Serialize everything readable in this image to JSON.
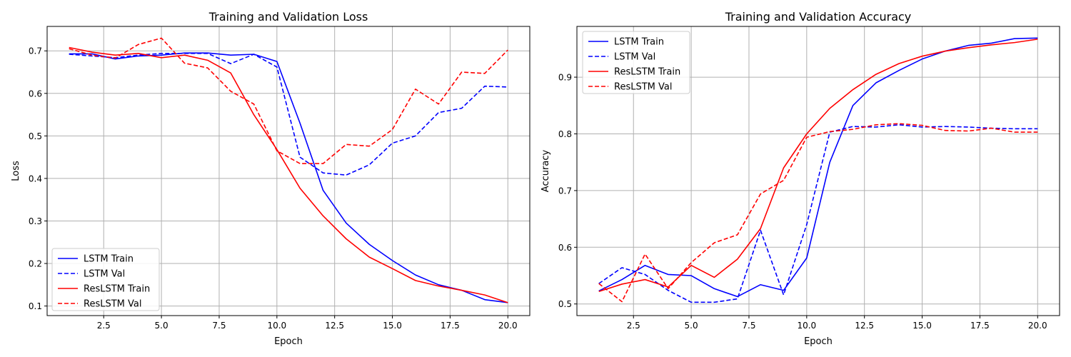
{
  "chart_data": [
    {
      "type": "line",
      "title": "Training and Validation Loss",
      "xlabel": "Epoch",
      "ylabel": "Loss",
      "xlim": [
        0.05,
        20.95
      ],
      "ylim": [
        0.0775,
        0.7575
      ],
      "xticks": [
        2.5,
        5.0,
        7.5,
        10.0,
        12.5,
        15.0,
        17.5,
        20.0
      ],
      "xtick_labels": [
        "2.5",
        "5.0",
        "7.5",
        "10.0",
        "12.5",
        "15.0",
        "17.5",
        "20.0"
      ],
      "yticks": [
        0.1,
        0.2,
        0.3,
        0.4,
        0.5,
        0.6,
        0.7
      ],
      "ytick_labels": [
        "0.1",
        "0.2",
        "0.3",
        "0.4",
        "0.5",
        "0.6",
        "0.7"
      ],
      "grid": true,
      "legend_position": "bottom-left",
      "x": [
        1,
        2,
        3,
        4,
        5,
        6,
        7,
        8,
        9,
        10,
        11,
        12,
        13,
        14,
        15,
        16,
        17,
        18,
        19,
        20
      ],
      "series": [
        {
          "name": "LSTM Train",
          "color": "#0000ff",
          "style": "solid",
          "values": [
            0.693,
            0.693,
            0.681,
            0.688,
            0.69,
            0.695,
            0.695,
            0.69,
            0.692,
            0.675,
            0.53,
            0.372,
            0.295,
            0.245,
            0.207,
            0.173,
            0.15,
            0.137,
            0.115,
            0.108
          ]
        },
        {
          "name": "LSTM Val",
          "color": "#0000ff",
          "style": "dashed",
          "values": [
            0.692,
            0.688,
            0.684,
            0.69,
            0.694,
            0.694,
            0.694,
            0.67,
            0.692,
            0.662,
            0.45,
            0.413,
            0.408,
            0.432,
            0.483,
            0.5,
            0.555,
            0.565,
            0.617,
            0.615
          ]
        },
        {
          "name": "ResLSTM Train",
          "color": "#ff0000",
          "style": "solid",
          "values": [
            0.708,
            0.697,
            0.69,
            0.694,
            0.684,
            0.69,
            0.678,
            0.648,
            0.55,
            0.468,
            0.377,
            0.312,
            0.258,
            0.215,
            0.188,
            0.16,
            0.147,
            0.137,
            0.126,
            0.108
          ]
        },
        {
          "name": "ResLSTM Val",
          "color": "#ff0000",
          "style": "dashed",
          "values": [
            0.705,
            0.69,
            0.683,
            0.715,
            0.73,
            0.671,
            0.66,
            0.605,
            0.575,
            0.465,
            0.435,
            0.435,
            0.48,
            0.476,
            0.515,
            0.61,
            0.575,
            0.65,
            0.647,
            0.702
          ]
        }
      ]
    },
    {
      "type": "line",
      "title": "Training and Validation Accuracy",
      "xlabel": "Epoch",
      "ylabel": "Accuracy",
      "xlim": [
        0.05,
        20.95
      ],
      "ylim": [
        0.4795,
        0.9895
      ],
      "xticks": [
        2.5,
        5.0,
        7.5,
        10.0,
        12.5,
        15.0,
        17.5,
        20.0
      ],
      "xtick_labels": [
        "2.5",
        "5.0",
        "7.5",
        "10.0",
        "12.5",
        "15.0",
        "17.5",
        "20.0"
      ],
      "yticks": [
        0.5,
        0.6,
        0.7,
        0.8,
        0.9
      ],
      "ytick_labels": [
        "0.5",
        "0.6",
        "0.7",
        "0.8",
        "0.9"
      ],
      "grid": true,
      "legend_position": "top-left",
      "x": [
        1,
        2,
        3,
        4,
        5,
        6,
        7,
        8,
        9,
        10,
        11,
        12,
        13,
        14,
        15,
        16,
        17,
        18,
        19,
        20
      ],
      "series": [
        {
          "name": "LSTM Train",
          "color": "#0000ff",
          "style": "solid",
          "values": [
            0.523,
            0.543,
            0.568,
            0.552,
            0.55,
            0.527,
            0.513,
            0.534,
            0.524,
            0.581,
            0.75,
            0.85,
            0.89,
            0.912,
            0.932,
            0.946,
            0.956,
            0.96,
            0.968,
            0.969
          ]
        },
        {
          "name": "LSTM Val",
          "color": "#0000ff",
          "style": "dashed",
          "values": [
            0.536,
            0.564,
            0.552,
            0.524,
            0.503,
            0.503,
            0.509,
            0.63,
            0.516,
            0.64,
            0.803,
            0.813,
            0.812,
            0.816,
            0.812,
            0.813,
            0.812,
            0.81,
            0.809,
            0.809
          ]
        },
        {
          "name": "ResLSTM Train",
          "color": "#ff0000",
          "style": "solid",
          "values": [
            0.522,
            0.535,
            0.543,
            0.53,
            0.568,
            0.547,
            0.579,
            0.633,
            0.74,
            0.8,
            0.845,
            0.878,
            0.905,
            0.924,
            0.937,
            0.946,
            0.952,
            0.957,
            0.961,
            0.967
          ]
        },
        {
          "name": "ResLSTM Val",
          "color": "#ff0000",
          "style": "dashed",
          "values": [
            0.536,
            0.504,
            0.588,
            0.527,
            0.573,
            0.608,
            0.622,
            0.694,
            0.718,
            0.794,
            0.804,
            0.808,
            0.816,
            0.818,
            0.815,
            0.806,
            0.805,
            0.81,
            0.803,
            0.803
          ]
        }
      ]
    }
  ]
}
